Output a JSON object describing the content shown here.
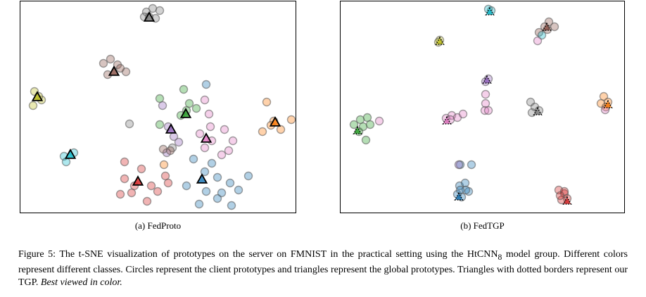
{
  "panels": {
    "a": {
      "subcaption": "(a) FedProto"
    },
    "b": {
      "subcaption": "(b) FedTGP"
    }
  },
  "caption": {
    "label": "Figure 5:",
    "text_before_sub": " The t-SNE visualization of prototypes on the server on FMNIST in the practical setting using the HtCNN",
    "subscript": "8",
    "text_after_sub": " model group. Different colors represent different classes. Circles represent the client prototypes and triangles represent the global prototypes. Triangles with dotted borders represent our TGP.",
    "emphasis": "Best viewed in color."
  },
  "colors": {
    "c0": "#1f77b4",
    "c1": "#ff7f0e",
    "c2": "#2ca02c",
    "c3": "#d62728",
    "c4": "#9467bd",
    "c5": "#8c564b",
    "c6": "#e377c2",
    "c7": "#7f7f7f",
    "c8": "#bcbd22",
    "c9": "#17becf"
  },
  "chart_data": [
    {
      "type": "scatter",
      "panel": "a",
      "xlim": [
        0,
        391
      ],
      "ylim": [
        0,
        300
      ],
      "circles": [
        {
          "c": "c7",
          "pts": [
            [
              179,
              15
            ],
            [
              188,
              10
            ],
            [
              198,
              13
            ],
            [
              183,
              22
            ],
            [
              192,
              24
            ],
            [
              176,
              22
            ]
          ]
        },
        {
          "c": "c5",
          "pts": [
            [
              118,
              88
            ],
            [
              128,
              82
            ],
            [
              138,
              90
            ],
            [
              150,
              100
            ],
            [
              124,
              104
            ],
            [
              142,
              95
            ]
          ]
        },
        {
          "c": "c8",
          "pts": [
            [
              20,
              128
            ],
            [
              30,
              140
            ],
            [
              18,
              148
            ],
            [
              26,
              135
            ]
          ]
        },
        {
          "c": "c1",
          "pts": [
            [
              350,
              143
            ],
            [
              360,
              170
            ],
            [
              344,
              185
            ],
            [
              385,
              168
            ],
            [
              370,
              182
            ],
            [
              356,
              176
            ]
          ]
        },
        {
          "c": "c9",
          "pts": [
            [
              62,
              220
            ],
            [
              76,
              215
            ],
            [
              65,
              228
            ]
          ]
        },
        {
          "c": "c2",
          "pts": [
            [
              198,
              138
            ],
            [
              232,
              125
            ],
            [
              240,
              145
            ],
            [
              228,
              162
            ],
            [
              250,
              152
            ],
            [
              236,
              155
            ],
            [
              198,
              175
            ]
          ]
        },
        {
          "c": "c4",
          "pts": [
            [
              202,
              148
            ],
            [
              210,
              178
            ],
            [
              218,
              192
            ],
            [
              225,
              200
            ],
            [
              208,
              215
            ]
          ]
        },
        {
          "c": "c6",
          "pts": [
            [
              262,
              140
            ],
            [
              268,
              160
            ],
            [
              255,
              188
            ],
            [
              272,
              198
            ],
            [
              262,
              208
            ],
            [
              290,
              182
            ],
            [
              302,
              198
            ],
            [
              296,
              212
            ],
            [
              286,
              218
            ],
            [
              270,
              178
            ]
          ]
        },
        {
          "c": "c0",
          "pts": [
            [
              264,
              118
            ],
            [
              246,
              224
            ],
            [
              262,
              242
            ],
            [
              272,
              230
            ],
            [
              236,
              262
            ],
            [
              264,
              270
            ],
            [
              254,
              288
            ],
            [
              286,
              272
            ],
            [
              298,
              258
            ],
            [
              280,
              280
            ],
            [
              300,
              290
            ],
            [
              310,
              268
            ],
            [
              324,
              248
            ],
            [
              280,
              250
            ]
          ]
        },
        {
          "c": "c3",
          "pts": [
            [
              148,
              228
            ],
            [
              172,
              238
            ],
            [
              148,
              252
            ],
            [
              162,
              262
            ],
            [
              142,
              274
            ],
            [
              158,
              272
            ],
            [
              186,
              262
            ],
            [
              180,
              284
            ],
            [
              195,
              270
            ],
            [
              210,
              258
            ],
            [
              206,
              248
            ]
          ]
        },
        {
          "c": "c7",
          "pts": [
            [
              155,
              174
            ],
            [
              216,
              208
            ]
          ]
        },
        {
          "c": "c5",
          "pts": [
            [
              203,
              210
            ],
            [
              213,
              212
            ]
          ]
        },
        {
          "c": "c1",
          "pts": [
            [
              204,
              232
            ]
          ]
        }
      ],
      "triangles": [
        {
          "c": "c7",
          "x": 183,
          "y": 23
        },
        {
          "c": "c5",
          "x": 133,
          "y": 100
        },
        {
          "c": "c8",
          "x": 24,
          "y": 136
        },
        {
          "c": "c2",
          "x": 235,
          "y": 160
        },
        {
          "c": "c4",
          "x": 214,
          "y": 182
        },
        {
          "c": "c6",
          "x": 264,
          "y": 195
        },
        {
          "c": "c1",
          "x": 362,
          "y": 172
        },
        {
          "c": "c9",
          "x": 71,
          "y": 218
        },
        {
          "c": "c0",
          "x": 258,
          "y": 253
        },
        {
          "c": "c3",
          "x": 167,
          "y": 256
        }
      ]
    },
    {
      "type": "scatter",
      "panel": "b",
      "xlim": [
        0,
        403
      ],
      "ylim": [
        0,
        300
      ],
      "circles": [
        {
          "c": "c9",
          "pts": [
            [
              214,
              13
            ],
            [
              210,
              11
            ]
          ]
        },
        {
          "c": "c5",
          "pts": [
            [
              290,
              36
            ],
            [
              296,
              29
            ],
            [
              304,
              36
            ],
            [
              282,
              44
            ],
            [
              294,
              40
            ]
          ]
        },
        {
          "c": "c9",
          "pts": [
            [
              286,
              48
            ]
          ]
        },
        {
          "c": "c6",
          "pts": [
            [
              280,
              56
            ]
          ]
        },
        {
          "c": "c8",
          "pts": [
            [
              141,
              55
            ],
            [
              139,
              58
            ]
          ]
        },
        {
          "c": "c4",
          "pts": [
            [
              210,
              110
            ],
            [
              206,
              114
            ]
          ]
        },
        {
          "c": "c6",
          "pts": [
            [
              206,
              132
            ],
            [
              206,
              145
            ]
          ]
        },
        {
          "c": "c6",
          "pts": [
            [
              150,
              166
            ],
            [
              158,
              162
            ],
            [
              166,
              165
            ],
            [
              174,
              160
            ],
            [
              156,
              168
            ]
          ]
        },
        {
          "c": "c6",
          "pts": [
            [
              205,
              155
            ],
            [
              210,
              155
            ]
          ]
        },
        {
          "c": "c7",
          "pts": [
            [
              270,
              143
            ],
            [
              276,
              150
            ],
            [
              282,
              155
            ],
            [
              272,
              158
            ]
          ]
        },
        {
          "c": "c1",
          "pts": [
            [
              374,
              135
            ],
            [
              380,
              143
            ],
            [
              370,
              145
            ],
            [
              377,
              150
            ]
          ]
        },
        {
          "c": "c6",
          "pts": [
            [
              376,
              154
            ]
          ]
        },
        {
          "c": "c2",
          "pts": [
            [
              19,
              175
            ],
            [
              28,
              168
            ],
            [
              38,
              165
            ],
            [
              42,
              175
            ],
            [
              32,
              178
            ],
            [
              26,
              185
            ],
            [
              36,
              197
            ]
          ]
        },
        {
          "c": "c6",
          "pts": [
            [
              55,
              170
            ]
          ]
        },
        {
          "c": "c0",
          "pts": [
            [
              170,
              232
            ],
            [
              186,
              232
            ],
            [
              169,
              262
            ],
            [
              177,
              258
            ],
            [
              182,
              270
            ],
            [
              166,
              274
            ],
            [
              172,
              278
            ],
            [
              178,
              268
            ],
            [
              170,
              268
            ]
          ]
        },
        {
          "c": "c4",
          "pts": [
            [
              168,
              232
            ]
          ]
        },
        {
          "c": "c3",
          "pts": [
            [
              310,
              268
            ],
            [
              318,
              273
            ],
            [
              322,
              280
            ],
            [
              314,
              282
            ],
            [
              318,
              270
            ],
            [
              312,
              276
            ]
          ]
        }
      ],
      "triangles": [
        {
          "c": "c9",
          "x": 212,
          "y": 15
        },
        {
          "c": "c5",
          "x": 293,
          "y": 37
        },
        {
          "c": "c8",
          "x": 141,
          "y": 57
        },
        {
          "c": "c4",
          "x": 208,
          "y": 112
        },
        {
          "c": "c7",
          "x": 280,
          "y": 157
        },
        {
          "c": "c1",
          "x": 380,
          "y": 147
        },
        {
          "c": "c6",
          "x": 151,
          "y": 170
        },
        {
          "c": "c2",
          "x": 24,
          "y": 184
        },
        {
          "c": "c0",
          "x": 168,
          "y": 278
        },
        {
          "c": "c3",
          "x": 322,
          "y": 284
        }
      ]
    }
  ]
}
